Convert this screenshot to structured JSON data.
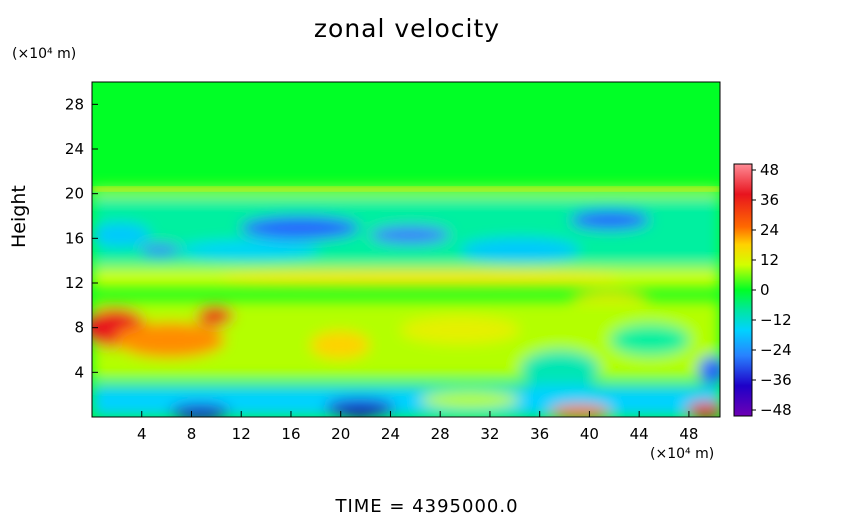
{
  "chart_data": {
    "type": "heatmap",
    "title": "zonal velocity",
    "ylabel": "Height",
    "x_unit": "(×10⁴ m)",
    "y_unit": "(×10⁴ m)",
    "xlim": [
      0,
      50.5
    ],
    "ylim": [
      0,
      30
    ],
    "x_ticks": [
      4,
      8,
      12,
      16,
      20,
      24,
      28,
      32,
      36,
      40,
      44,
      48
    ],
    "y_ticks": [
      4,
      8,
      12,
      16,
      20,
      24,
      28
    ],
    "colorbar": {
      "ticks": [
        48,
        36,
        24,
        12,
        0,
        -12,
        -24,
        -36,
        -48
      ],
      "range": [
        -48,
        48
      ]
    },
    "footer": "TIME  =  4395000.0"
  },
  "colors": {
    "background_field": "#00ff26",
    "strong_positive": "#e8141e",
    "strong_negative": "#1e00c8"
  }
}
